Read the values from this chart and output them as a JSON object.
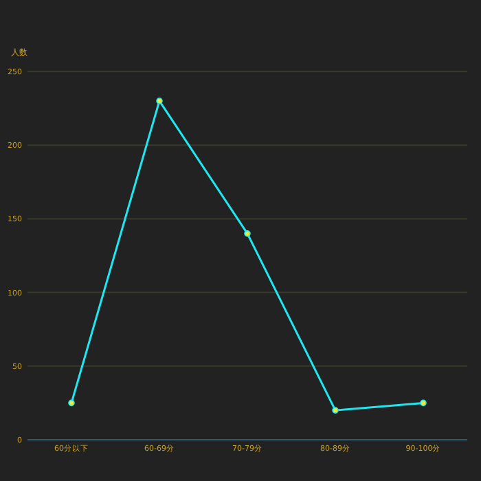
{
  "chart_data": {
    "type": "line",
    "ylabel": "人数",
    "categories": [
      "60分以下",
      "60-69分",
      "70-79分",
      "80-89分",
      "90-100分"
    ],
    "series": [
      {
        "color": "#1fe6f0",
        "values": [
          25,
          230,
          140,
          20,
          25
        ]
      }
    ],
    "ylim": [
      0,
      250
    ],
    "yticks": [
      0,
      50,
      100,
      150,
      200,
      250
    ],
    "grid": "y",
    "marker": "circle"
  }
}
